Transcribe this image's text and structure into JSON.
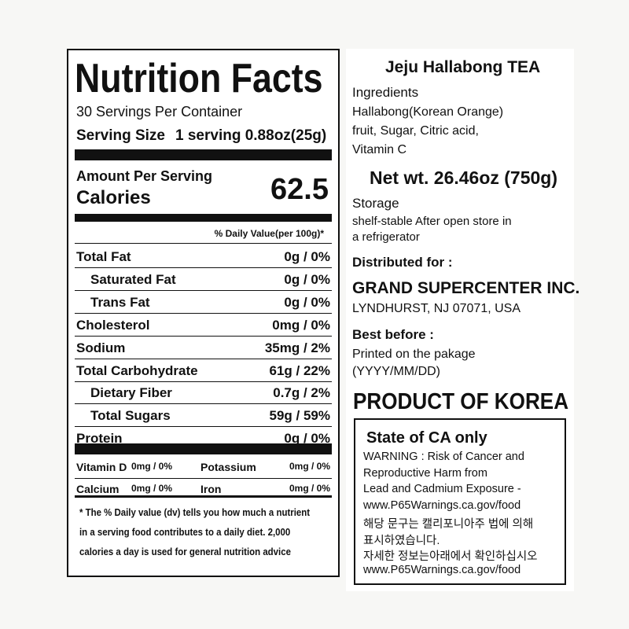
{
  "nutrition": {
    "title": "Nutrition Facts",
    "servings": "30 Servings Per Container",
    "serving_size_label": "Serving Size",
    "serving_size": "1 serving 0.88oz(25g)",
    "amount_per_serving": "Amount Per Serving",
    "calories_label": "Calories",
    "calories": "62.5",
    "dv_header": "% Daily Value(per 100g)*",
    "rows": [
      [
        "Total Fat",
        "0g / 0%"
      ],
      [
        "Saturated Fat",
        "0g / 0%"
      ],
      [
        "Trans Fat",
        "0g / 0%"
      ],
      [
        "Cholesterol",
        "0mg / 0%"
      ],
      [
        "Sodium",
        "35mg / 2%"
      ],
      [
        "Total Carbohydrate",
        "61g / 22%"
      ],
      [
        "Dietary Fiber",
        "0.7g / 2%"
      ],
      [
        "Total Sugars",
        "59g / 59%"
      ],
      [
        "Protein",
        "0g / 0%"
      ]
    ],
    "micronutrients": [
      [
        "Vitamin D",
        "0mg / 0%",
        "Potassium",
        "0mg / 0%"
      ],
      [
        "Calcium",
        "0mg / 0%",
        "Iron",
        "0mg / 0%"
      ]
    ],
    "footnote": [
      "* The % Daily value (dv) tells you how much a nutrient",
      "in a serving food contributes to a daily diet. 2,000",
      "calories a day is used for general nutrition advice"
    ]
  },
  "product": {
    "name": "Jeju Hallabong TEA",
    "ingredients_label": "Ingredients",
    "ingredients": [
      "Hallabong(Korean Orange)",
      "fruit, Sugar, Citric acid,",
      "Vitamin C"
    ],
    "net_wt": "Net wt. 26.46oz (750g)",
    "storage_label": "Storage",
    "storage": [
      "shelf-stable After open store in",
      "a refrigerator"
    ],
    "distributed_label": "Distributed for :",
    "distributor_name": "GRAND SUPERCENTER INC.",
    "distributor_address": "LYNDHURST, NJ 07071, USA",
    "best_before_label": "Best before :",
    "best_before": [
      "Printed on the pakage",
      "(YYYY/MM/DD)"
    ],
    "origin": "PRODUCT OF KOREA",
    "warning_title": "State of CA only",
    "warning": [
      "WARNING : Risk of Cancer and",
      "Reproductive Harm from",
      "Lead and Cadmium Exposure -",
      "www.P65Warnings.ca.gov/food",
      "해당 문구는 캘리포니아주 법에 의해",
      "표시하였습니다.",
      "자세한 정보는아래에서 확인하십시오",
      "www.P65Warnings.ca.gov/food"
    ]
  }
}
